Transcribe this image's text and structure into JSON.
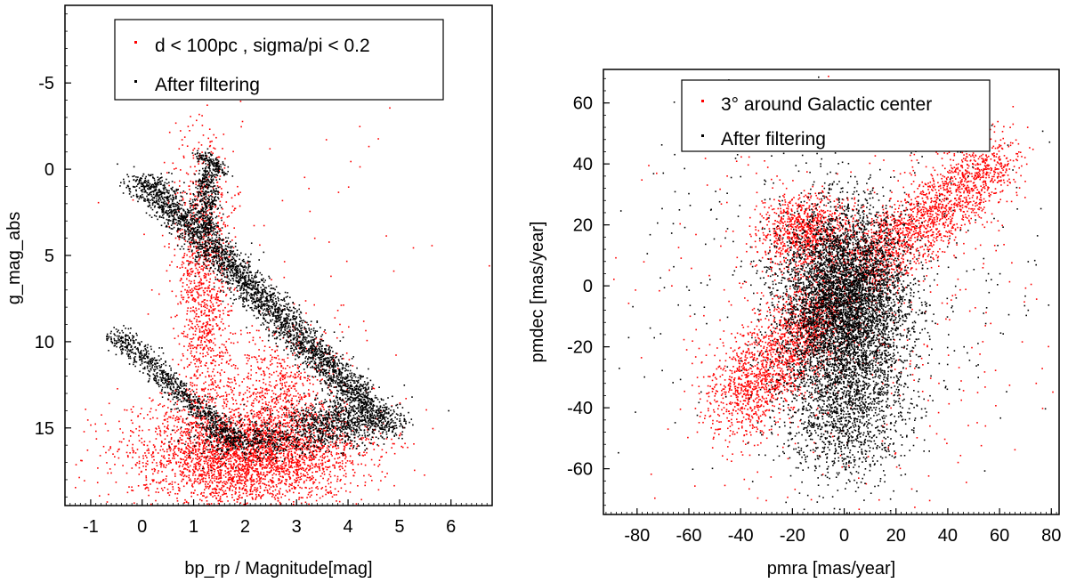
{
  "chart_data": [
    {
      "type": "scatter",
      "id": "hr",
      "title": "",
      "xlabel": "bp_rp / Magnitude[mag]",
      "ylabel": "g_mag_abs",
      "xlim": [
        -1.5,
        6.8
      ],
      "ylim": [
        19.5,
        -9.5
      ],
      "y_inverted": true,
      "xticks": [
        -1,
        0,
        1,
        2,
        3,
        4,
        5,
        6
      ],
      "xtick_labels": [
        "-1",
        "0",
        "1",
        "2",
        "3",
        "4",
        "5",
        "6"
      ],
      "yticks": [
        -5,
        0,
        5,
        10,
        15
      ],
      "ytick_labels": [
        "-5",
        "0",
        "5",
        "10",
        "15"
      ],
      "legend_position": "top-right",
      "series": [
        {
          "name": "d < 100pc , sigma/pi < 0.2",
          "color": "#ff0000",
          "components": [
            {
              "cx": 2.0,
              "cy": 16.5,
              "sx": 1.1,
              "sy": 1.5,
              "n": 3200
            },
            {
              "cx": 1.2,
              "cy": 8.0,
              "sx": 0.25,
              "sy": 4.0,
              "n": 900
            },
            {
              "cx": 2.7,
              "cy": 13.0,
              "sx": 0.6,
              "sy": 2.0,
              "n": 700
            },
            {
              "cx": 2.5,
              "cy": 4.0,
              "sx": 2.0,
              "sy": 8.0,
              "n": 90
            },
            {
              "cx": 1.1,
              "cy": 3.0,
              "sx": 0.35,
              "sy": 2.8,
              "n": 250
            }
          ]
        },
        {
          "name": "After filtering",
          "color": "#000000",
          "components": [
            {
              "type": "line",
              "x0": 0.0,
              "y0": 0.5,
              "x1": 4.8,
              "y1": 15.0,
              "width": 0.22,
              "n": 3200
            },
            {
              "type": "line",
              "x0": -0.5,
              "y0": 9.5,
              "x1": 1.8,
              "y1": 15.8,
              "width": 0.16,
              "n": 900
            },
            {
              "type": "line",
              "x0": 1.25,
              "y0": 0.0,
              "x1": 1.25,
              "y1": 3.6,
              "width": 0.12,
              "n": 400
            },
            {
              "type": "line",
              "x0": 1.1,
              "y0": -1.0,
              "x1": 1.6,
              "y1": 0.2,
              "width": 0.08,
              "n": 150
            },
            {
              "type": "blob",
              "cx": 3.8,
              "cy": 14.6,
              "sx": 0.5,
              "sy": 0.7,
              "n": 700
            },
            {
              "type": "blob",
              "cx": 2.2,
              "cy": 15.6,
              "sx": 0.7,
              "sy": 0.6,
              "n": 500
            }
          ]
        }
      ]
    },
    {
      "type": "scatter",
      "id": "pm",
      "title": "",
      "xlabel": "pmra [mas/year]",
      "ylabel": "pmdec [mas/year]",
      "xlim": [
        -93,
        83
      ],
      "ylim": [
        -75,
        71
      ],
      "xticks": [
        -80,
        -60,
        -40,
        -20,
        0,
        20,
        40,
        60,
        80
      ],
      "xtick_labels": [
        "-80",
        "-60",
        "-40",
        "-20",
        "0",
        "20",
        "40",
        "60",
        "80"
      ],
      "yticks": [
        -60,
        -40,
        -20,
        0,
        20,
        40,
        60
      ],
      "ytick_labels": [
        "-60",
        "-40",
        "-20",
        "0",
        "20",
        "40",
        "60"
      ],
      "legend_position": "top-right",
      "series": [
        {
          "name": "3° around Galactic center",
          "color": "#ff0000",
          "components": [
            {
              "type": "line",
              "x0": 5,
              "y0": 5,
              "x1": 60,
              "y1": 42,
              "width": 6,
              "n": 1800
            },
            {
              "type": "line",
              "x0": -5,
              "y0": -5,
              "x1": -45,
              "y1": -40,
              "width": 7,
              "n": 1800
            },
            {
              "type": "blob",
              "cx": -15,
              "cy": 18,
              "sx": 9,
              "sy": 6,
              "n": 900
            },
            {
              "type": "blob",
              "cx": 0,
              "cy": -10,
              "sx": 35,
              "sy": 30,
              "n": 600
            }
          ]
        },
        {
          "name": "After filtering",
          "color": "#000000",
          "components": [
            {
              "type": "blob",
              "cx": 0,
              "cy": -5,
              "sx": 12,
              "sy": 15,
              "n": 5200
            },
            {
              "type": "blob",
              "cx": 0,
              "cy": -40,
              "sx": 12,
              "sy": 12,
              "n": 1400
            },
            {
              "type": "blob",
              "cx": 0,
              "cy": 5,
              "sx": 40,
              "sy": 35,
              "n": 500
            }
          ]
        }
      ]
    }
  ]
}
